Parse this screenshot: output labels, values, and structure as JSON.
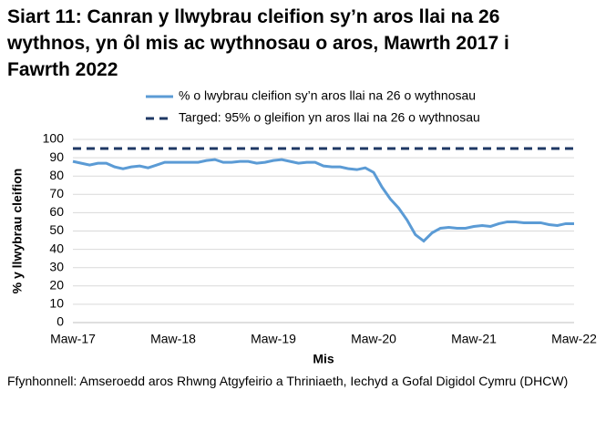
{
  "chart_data": {
    "type": "line",
    "title": "Siart 11: Canran y llwybrau cleifion sy’n aros llai na 26 wythnos, yn ôl mis ac wythnosau o aros, Mawrth 2017 i Fawrth 2022",
    "x_label": "Mis",
    "y_label": "% y llwybrau cleifion",
    "source": "Ffynhonnell: Amseroedd aros Rhwng Atgyfeirio a Thriniaeth, Iechyd a Gofal Digidol Cymru (DHCW)",
    "categories": [
      "Maw-17",
      null,
      null,
      null,
      null,
      null,
      null,
      null,
      null,
      null,
      null,
      null,
      "Maw-18",
      null,
      null,
      null,
      null,
      null,
      null,
      null,
      null,
      null,
      null,
      null,
      "Maw-19",
      null,
      null,
      null,
      null,
      null,
      null,
      null,
      null,
      null,
      null,
      null,
      "Maw-20",
      null,
      null,
      null,
      null,
      null,
      null,
      null,
      null,
      null,
      null,
      null,
      "Maw-21",
      null,
      null,
      null,
      null,
      null,
      null,
      null,
      null,
      null,
      null,
      null,
      "Maw-22"
    ],
    "series": [
      {
        "name": "% o lwybrau cleifion sy’n aros llai na 26 o wythnosau",
        "color": "#5b9bd5",
        "dashed": false,
        "values": [
          88,
          87,
          86,
          87,
          87,
          85,
          84,
          85,
          85.5,
          84.5,
          86,
          87.5,
          87.5,
          87.5,
          87.5,
          87.5,
          88.5,
          89,
          87.5,
          87.5,
          88,
          88,
          87,
          87.5,
          88.5,
          89,
          88,
          87,
          87.5,
          87.5,
          85.5,
          85,
          85,
          84,
          83.5,
          84.5,
          82,
          74,
          67.5,
          62.5,
          56,
          48,
          44.5,
          49,
          51.5,
          52,
          51.5,
          51.5,
          52.5,
          53,
          52.5,
          54,
          55,
          55,
          54.5,
          54.5,
          54.5,
          53.5,
          53,
          54,
          54
        ]
      },
      {
        "name": "Targed: 95% o gleifion yn aros llai na 26 o wythnosau",
        "color": "#1f3864",
        "dashed": true,
        "values": [
          95,
          95,
          95,
          95,
          95,
          95,
          95,
          95,
          95,
          95,
          95,
          95,
          95,
          95,
          95,
          95,
          95,
          95,
          95,
          95,
          95,
          95,
          95,
          95,
          95,
          95,
          95,
          95,
          95,
          95,
          95,
          95,
          95,
          95,
          95,
          95,
          95,
          95,
          95,
          95,
          95,
          95,
          95,
          95,
          95,
          95,
          95,
          95,
          95,
          95,
          95,
          95,
          95,
          95,
          95,
          95,
          95,
          95,
          95,
          95,
          95
        ]
      }
    ],
    "ylim": [
      0,
      100
    ],
    "yticks": [
      0,
      10,
      20,
      30,
      40,
      50,
      60,
      70,
      80,
      90,
      100
    ],
    "grid": true
  }
}
